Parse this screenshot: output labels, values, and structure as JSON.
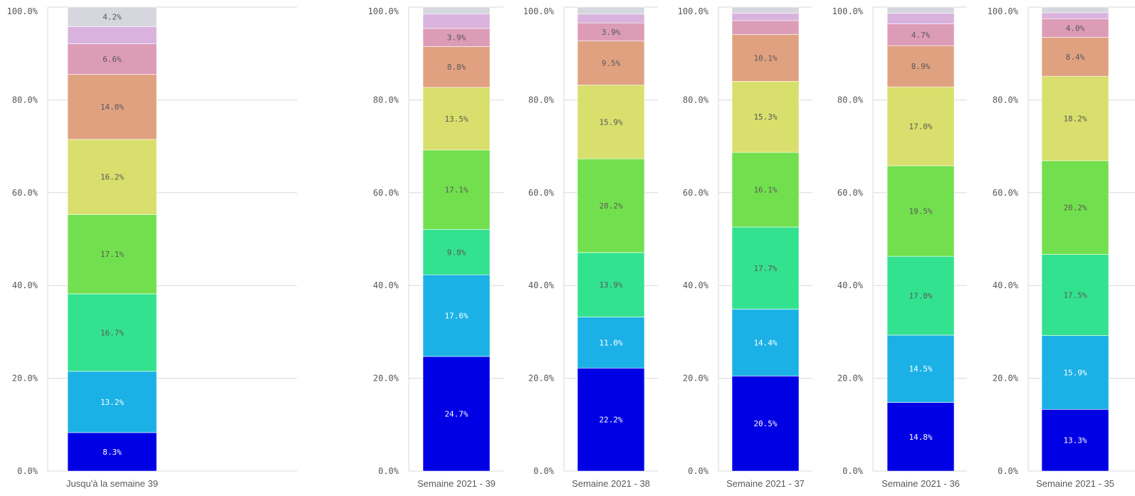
{
  "chart_data": {
    "type": "bar",
    "stacked": true,
    "y_ticks": [
      "0.0%",
      "20.0%",
      "40.0%",
      "60.0%",
      "80.0%",
      "100.0%"
    ],
    "ylim": [
      0,
      100
    ],
    "grid": true,
    "colors": [
      "#0000e5",
      "#1bb1e6",
      "#33e28f",
      "#72e04e",
      "#d9df6c",
      "#e0a181",
      "#dc9cb6",
      "#d9b3de",
      "#d6d6de"
    ],
    "panels": [
      {
        "category": "Jusqu'à la semaine 39",
        "values": [
          8.3,
          13.2,
          16.7,
          17.1,
          16.2,
          14.0,
          6.6,
          3.7,
          4.2
        ],
        "labels": [
          "8.3%",
          "13.2%",
          "16.7%",
          "17.1%",
          "16.2%",
          "14.0%",
          "6.6%",
          "",
          "4.2%"
        ]
      },
      {
        "category": "Semaine 2021 - 39",
        "values": [
          24.7,
          17.6,
          9.8,
          17.1,
          13.5,
          8.8,
          3.9,
          3.1,
          1.5
        ],
        "labels": [
          "24.7%",
          "17.6%",
          "9.8%",
          "17.1%",
          "13.5%",
          "8.8%",
          "3.9%",
          "",
          ""
        ]
      },
      {
        "category": "Semaine 2021 - 38",
        "values": [
          22.2,
          11.0,
          13.9,
          20.2,
          15.9,
          9.5,
          3.9,
          1.9,
          1.5
        ],
        "labels": [
          "22.2%",
          "11.0%",
          "13.9%",
          "20.2%",
          "15.9%",
          "9.5%",
          "3.9%",
          "",
          ""
        ]
      },
      {
        "category": "Semaine 2021 - 37",
        "values": [
          20.5,
          14.4,
          17.7,
          16.1,
          15.3,
          10.1,
          3.0,
          1.6,
          1.3
        ],
        "labels": [
          "20.5%",
          "14.4%",
          "17.7%",
          "16.1%",
          "15.3%",
          "10.1%",
          "",
          "",
          ""
        ]
      },
      {
        "category": "Semaine 2021 - 36",
        "values": [
          14.8,
          14.5,
          17.0,
          19.5,
          17.0,
          8.9,
          4.7,
          2.3,
          1.3
        ],
        "labels": [
          "14.8%",
          "14.5%",
          "17.0%",
          "19.5%",
          "17.0%",
          "8.9%",
          "4.7%",
          "",
          ""
        ]
      },
      {
        "category": "Semaine 2021 - 35",
        "values": [
          13.3,
          15.9,
          17.5,
          20.2,
          18.2,
          8.4,
          4.0,
          1.3,
          1.2
        ],
        "labels": [
          "13.3%",
          "15.9%",
          "17.5%",
          "20.2%",
          "18.2%",
          "8.4%",
          "4.0%",
          "",
          ""
        ]
      }
    ]
  }
}
